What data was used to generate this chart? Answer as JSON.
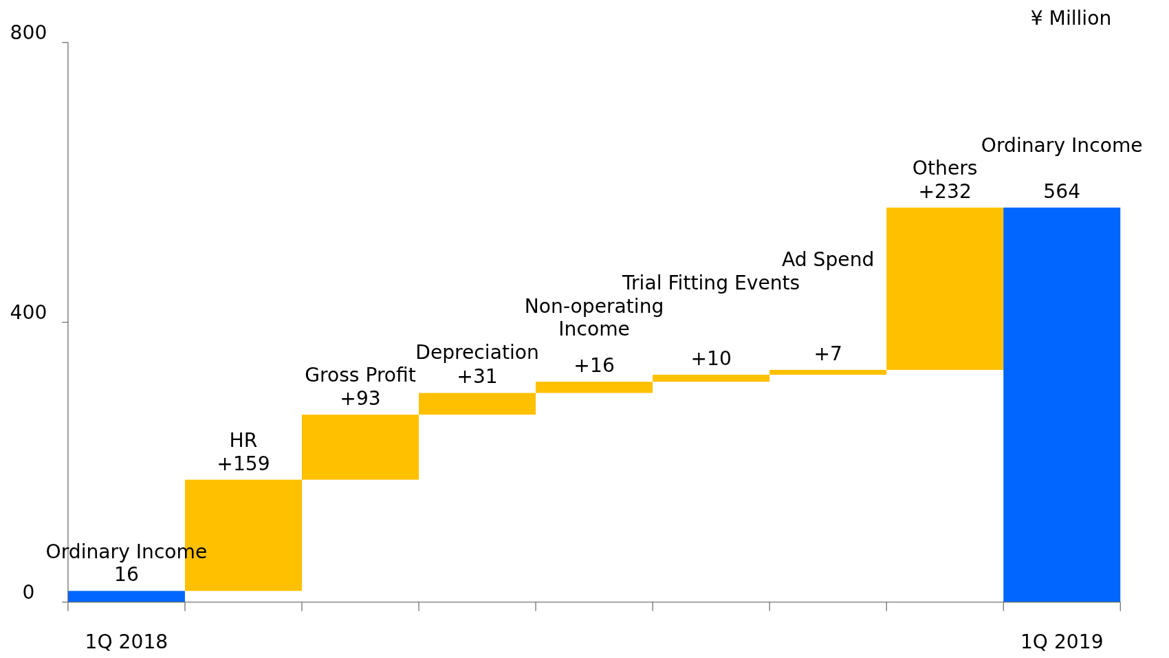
{
  "chart_data": {
    "type": "bar",
    "ylabel": "¥ Million",
    "categories": [
      "1Q 2018",
      null,
      null,
      null,
      null,
      null,
      null,
      null,
      "1Q 2019"
    ],
    "base": [
      0,
      16,
      175,
      268,
      299,
      315,
      325,
      332,
      0
    ],
    "values": [
      16,
      159,
      93,
      31,
      16,
      10,
      7,
      232,
      564
    ],
    "colors": [
      "#0066ff",
      "#ffc000",
      "#ffc000",
      "#ffc000",
      "#ffc000",
      "#ffc000",
      "#ffc000",
      "#ffc000",
      "#0066ff"
    ],
    "value_labels": [
      "16",
      "+159",
      "+93",
      "+31",
      "+16",
      "+10",
      "+7",
      "+232",
      "564"
    ],
    "annotations": [
      "Ordinary Income",
      "HR",
      "Gross Profit",
      "Depreciation",
      "Non-operating\nIncome",
      "Trial Fitting Events",
      "Ad Spend",
      "Others",
      "Ordinary Income"
    ],
    "ylim": [
      0,
      800
    ],
    "yticks": [
      0,
      400,
      800
    ],
    "grid": false
  }
}
